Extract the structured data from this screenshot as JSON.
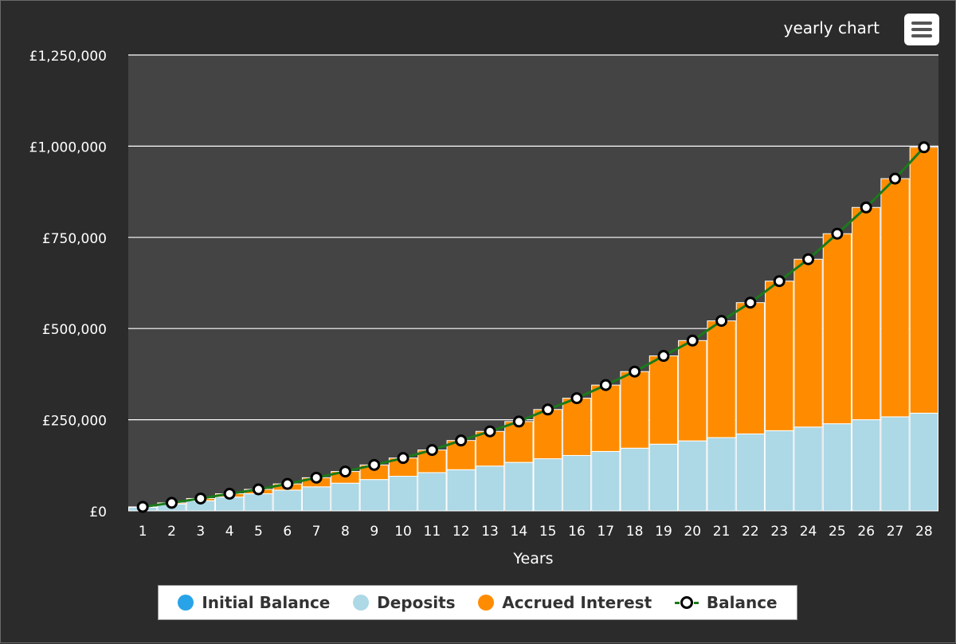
{
  "header": {
    "title": "yearly chart",
    "menu_icon": "hamburger-icon"
  },
  "colors": {
    "plot_bg": "#444444",
    "initial": "#29a3e8",
    "deposits": "#add8e6",
    "interest": "#ff8c00",
    "balance_line": "#1a7a1a",
    "gridline": "#ffffff"
  },
  "legend": {
    "initial": "Initial Balance",
    "deposits": "Deposits",
    "interest": "Accrued Interest",
    "balance": "Balance"
  },
  "chart_data": {
    "type": "bar",
    "stacked": true,
    "xlabel": "Years",
    "ylabel": "",
    "ylim": [
      0,
      1250000
    ],
    "yticks": [
      0,
      250000,
      500000,
      750000,
      1000000,
      1250000
    ],
    "ytick_labels": [
      "£0",
      "£250,000",
      "£500,000",
      "£750,000",
      "£1,000,000",
      "£1,250,000"
    ],
    "grid": true,
    "legend_position": "bottom",
    "categories": [
      "1",
      "2",
      "3",
      "4",
      "5",
      "6",
      "7",
      "8",
      "9",
      "10",
      "11",
      "12",
      "13",
      "14",
      "15",
      "16",
      "17",
      "18",
      "19",
      "20",
      "21",
      "22",
      "23",
      "24",
      "25",
      "26",
      "27",
      "28"
    ],
    "series": [
      {
        "name": "Initial Balance",
        "type": "bar",
        "values": [
          0,
          0,
          0,
          0,
          0,
          0,
          0,
          0,
          0,
          0,
          0,
          0,
          0,
          0,
          0,
          0,
          0,
          0,
          0,
          0,
          0,
          0,
          0,
          0,
          0,
          0,
          0,
          0
        ]
      },
      {
        "name": "Deposits",
        "type": "bar",
        "values": [
          10000,
          19000,
          28000,
          38000,
          47000,
          57000,
          66000,
          76000,
          86000,
          95000,
          105000,
          113000,
          123000,
          133000,
          143000,
          152000,
          163000,
          172000,
          183000,
          192000,
          201000,
          211000,
          220000,
          230000,
          239000,
          250000,
          258000,
          268000
        ]
      },
      {
        "name": "Accrued Interest",
        "type": "bar",
        "values": [
          1000,
          3000,
          6000,
          9000,
          12000,
          17000,
          25000,
          32000,
          40000,
          50000,
          62000,
          80000,
          95000,
          112000,
          135000,
          157000,
          182000,
          210000,
          242000,
          275000,
          320000,
          360000,
          410000,
          460000,
          521000,
          582000,
          653000,
          729000
        ]
      },
      {
        "name": "Balance",
        "type": "line",
        "values": [
          11000,
          22000,
          34000,
          47000,
          59000,
          74000,
          91000,
          108000,
          126000,
          145000,
          167000,
          193000,
          218000,
          245000,
          278000,
          309000,
          345000,
          382000,
          425000,
          467000,
          521000,
          571000,
          630000,
          690000,
          760000,
          832000,
          911000,
          997000
        ]
      }
    ]
  }
}
